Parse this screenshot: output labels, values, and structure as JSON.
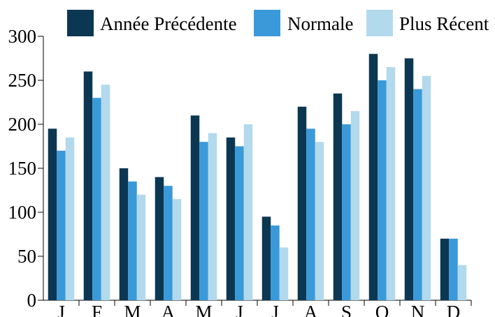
{
  "chart_data": {
    "type": "bar",
    "title": "",
    "xlabel": "",
    "ylabel": "",
    "categories": [
      "J",
      "F",
      "M",
      "A",
      "M",
      "J",
      "J",
      "A",
      "S",
      "O",
      "N",
      "D"
    ],
    "series": [
      {
        "name": "Année Précédente",
        "color": "#0c3752",
        "values": [
          195,
          260,
          150,
          140,
          210,
          185,
          95,
          220,
          235,
          280,
          275,
          70
        ]
      },
      {
        "name": "Normale",
        "color": "#3a9ad9",
        "values": [
          170,
          230,
          135,
          130,
          180,
          175,
          85,
          195,
          200,
          250,
          240,
          70
        ]
      },
      {
        "name": "Plus Récent",
        "color": "#b3d9ed",
        "values": [
          185,
          245,
          120,
          115,
          190,
          200,
          60,
          180,
          215,
          265,
          255,
          40
        ]
      }
    ],
    "ylim": [
      0,
      300
    ],
    "yticks": [
      0,
      50,
      100,
      150,
      200,
      250,
      300
    ],
    "grid": false,
    "legend_position": "top"
  }
}
